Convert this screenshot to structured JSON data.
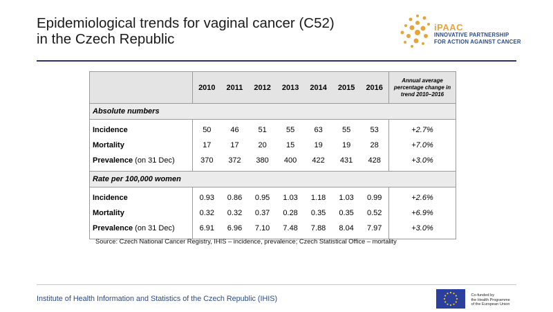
{
  "title_line1": "Epidemiological trends for vaginal cancer (C52)",
  "title_line2": "in the Czech Republic",
  "logo": {
    "name": "iPAAC",
    "sub1": "INNOVATIVE PARTNERSHIP",
    "sub2": "FOR ACTION AGAINST CANCER",
    "accent": "#e5a53a",
    "blue": "#2a4a8a"
  },
  "table": {
    "years": [
      "2010",
      "2011",
      "2012",
      "2013",
      "2014",
      "2015",
      "2016"
    ],
    "annual_header": "Annual average percentage change in trend 2010–2016",
    "section1": "Absolute numbers",
    "section2": "Rate per 100,000 women",
    "absolute": [
      {
        "label": "Incidence",
        "suffix": "",
        "values": [
          "50",
          "46",
          "51",
          "55",
          "63",
          "55",
          "53"
        ],
        "trend": "+2.7%"
      },
      {
        "label": "Mortality",
        "suffix": "",
        "values": [
          "17",
          "17",
          "20",
          "15",
          "19",
          "19",
          "28"
        ],
        "trend": "+7.0%"
      },
      {
        "label": "Prevalence",
        "suffix": " (on 31 Dec)",
        "values": [
          "370",
          "372",
          "380",
          "400",
          "422",
          "431",
          "428"
        ],
        "trend": "+3.0%"
      }
    ],
    "rate": [
      {
        "label": "Incidence",
        "suffix": "",
        "values": [
          "0.93",
          "0.86",
          "0.95",
          "1.03",
          "1.18",
          "1.03",
          "0.99"
        ],
        "trend": "+2.6%"
      },
      {
        "label": "Mortality",
        "suffix": "",
        "values": [
          "0.32",
          "0.32",
          "0.37",
          "0.28",
          "0.35",
          "0.35",
          "0.52"
        ],
        "trend": "+6.9%"
      },
      {
        "label": "Prevalence",
        "suffix": " (on 31 Dec)",
        "values": [
          "6.91",
          "6.96",
          "7.10",
          "7.48",
          "7.88",
          "8.04",
          "7.97"
        ],
        "trend": "+3.0%"
      }
    ]
  },
  "source": "Source: Czech National Cancer Registry, IHIS – incidence, prevalence; Czech Statistical Office – mortality",
  "footer": "Institute of Health Information and Statistics of the Czech Republic (IHIS)",
  "eu": {
    "line1": "Co-funded by",
    "line2": "the Health Programme",
    "line3": "of the European Union",
    "flag_color": "#2a3f9e",
    "star_color": "#ffd200"
  }
}
